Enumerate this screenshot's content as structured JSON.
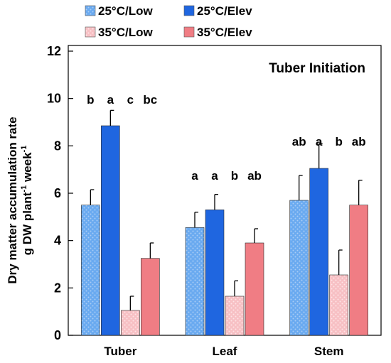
{
  "chart_data": {
    "type": "bar",
    "title": "",
    "annotation": "Tuber Initiation",
    "ylabel_line1": "Dry matter accumulation rate",
    "ylabel_line2_parts": [
      "g DW plant",
      "-1",
      " week",
      "-1"
    ],
    "xlabel": "",
    "ylim": [
      0,
      12
    ],
    "yticks": [
      "0",
      "2",
      "4",
      "6",
      "8",
      "10",
      "12"
    ],
    "grid": false,
    "legend_position": "top",
    "categories": [
      "Tuber",
      "Leaf",
      "Stem"
    ],
    "series": [
      {
        "name": "25°C/Low",
        "color": "#5aa0ea",
        "pattern": "dotted",
        "values": [
          5.5,
          4.55,
          5.7
        ],
        "errors": [
          0.65,
          0.65,
          1.05
        ]
      },
      {
        "name": "25°C/Elev",
        "color": "#1f66e0",
        "pattern": "solid",
        "values": [
          8.85,
          5.3,
          7.05
        ],
        "errors": [
          0.65,
          0.65,
          1.05
        ]
      },
      {
        "name": "35°C/Low",
        "color": "#f8c2c6",
        "pattern": "dotted",
        "values": [
          1.05,
          1.65,
          2.55
        ],
        "errors": [
          0.6,
          0.65,
          1.05
        ]
      },
      {
        "name": "35°C/Elev",
        "color": "#f07d84",
        "pattern": "solid",
        "values": [
          3.25,
          3.9,
          5.5
        ],
        "errors": [
          0.65,
          0.6,
          1.05
        ]
      }
    ],
    "significance": [
      [
        "b",
        "a",
        "c",
        "bc"
      ],
      [
        "a",
        "a",
        "b",
        "ab"
      ],
      [
        "ab",
        "a",
        "b",
        "ab"
      ]
    ]
  }
}
